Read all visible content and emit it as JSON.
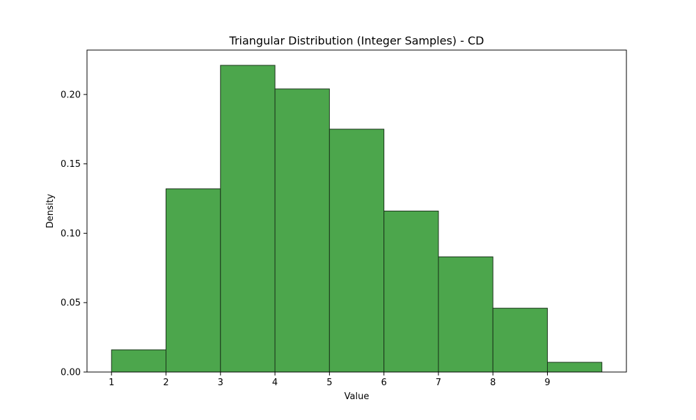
{
  "chart_data": {
    "type": "bar",
    "title": "Triangular Distribution (Integer Samples) - CD",
    "xlabel": "Value",
    "ylabel": "Density",
    "bins": [
      {
        "start": 1,
        "end": 2,
        "value": 0.016
      },
      {
        "start": 2,
        "end": 3,
        "value": 0.132
      },
      {
        "start": 3,
        "end": 4,
        "value": 0.221
      },
      {
        "start": 4,
        "end": 5,
        "value": 0.204
      },
      {
        "start": 5,
        "end": 6,
        "value": 0.175
      },
      {
        "start": 6,
        "end": 7,
        "value": 0.116
      },
      {
        "start": 7,
        "end": 8,
        "value": 0.083
      },
      {
        "start": 8,
        "end": 9,
        "value": 0.046
      },
      {
        "start": 9,
        "end": 10,
        "value": 0.007
      }
    ],
    "xticks": [
      1,
      2,
      3,
      4,
      5,
      6,
      7,
      8,
      9
    ],
    "xtick_labels": [
      "1",
      "2",
      "3",
      "4",
      "5",
      "6",
      "7",
      "8",
      "9"
    ],
    "yticks": [
      0.0,
      0.05,
      0.1,
      0.15,
      0.2
    ],
    "ytick_labels": [
      "0.00",
      "0.05",
      "0.10",
      "0.15",
      "0.20"
    ],
    "xlim": [
      0.55,
      10.45
    ],
    "ylim": [
      0,
      0.232
    ],
    "bar_color": "#4ca64c",
    "bar_edge_color": "#1a331a",
    "grid": false,
    "legend": "none"
  }
}
